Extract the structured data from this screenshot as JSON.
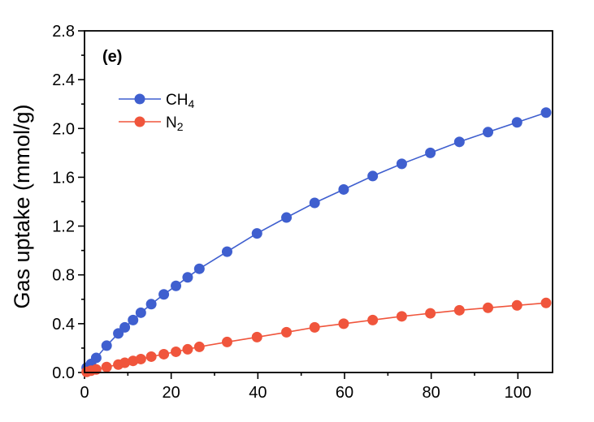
{
  "chart_data": {
    "type": "line",
    "panel_label": "(e)",
    "title": "",
    "xlabel": "",
    "ylabel": "Gas uptake (mmol/g)",
    "xlim": [
      0,
      108
    ],
    "ylim": [
      0,
      2.8
    ],
    "x_ticks": [
      0,
      20,
      40,
      60,
      80,
      100
    ],
    "x_tick_labels": [
      "0",
      "20",
      "40",
      "60",
      "80",
      "100"
    ],
    "y_ticks": [
      0,
      0.4,
      0.8,
      1.2,
      1.6,
      2.0,
      2.4,
      2.8
    ],
    "y_tick_labels": [
      "0.0",
      "0.4",
      "0.8",
      "1.2",
      "1.6",
      "2.0",
      "2.4",
      "2.8"
    ],
    "grid": false,
    "legend_position": "upper-left",
    "series": [
      {
        "name": "CH4",
        "legend_main": "CH",
        "legend_sub": "4",
        "color": "#3f5fcf",
        "x": [
          0.5,
          1.5,
          2.7,
          5.1,
          7.8,
          9.3,
          11.2,
          13.0,
          15.4,
          18.3,
          21.1,
          23.8,
          26.5,
          32.9,
          39.8,
          46.6,
          53.1,
          59.8,
          66.5,
          73.2,
          79.8,
          86.5,
          93.1,
          99.8,
          106.5
        ],
        "y": [
          0.04,
          0.07,
          0.12,
          0.22,
          0.32,
          0.37,
          0.43,
          0.49,
          0.56,
          0.64,
          0.71,
          0.78,
          0.85,
          0.99,
          1.14,
          1.27,
          1.39,
          1.5,
          1.61,
          1.71,
          1.8,
          1.89,
          1.97,
          2.05,
          2.13
        ]
      },
      {
        "name": "N2",
        "legend_main": "N",
        "legend_sub": "2",
        "color": "#f0553c",
        "x": [
          0.5,
          1.5,
          2.7,
          5.1,
          7.8,
          9.3,
          11.2,
          13.0,
          15.4,
          18.3,
          21.1,
          23.8,
          26.5,
          32.9,
          39.8,
          46.6,
          53.1,
          59.8,
          66.5,
          73.2,
          79.8,
          86.5,
          93.1,
          99.8,
          106.5
        ],
        "y": [
          0.005,
          0.015,
          0.025,
          0.045,
          0.065,
          0.08,
          0.095,
          0.11,
          0.13,
          0.15,
          0.17,
          0.19,
          0.21,
          0.25,
          0.29,
          0.33,
          0.37,
          0.4,
          0.43,
          0.46,
          0.485,
          0.51,
          0.53,
          0.55,
          0.57
        ]
      }
    ]
  }
}
